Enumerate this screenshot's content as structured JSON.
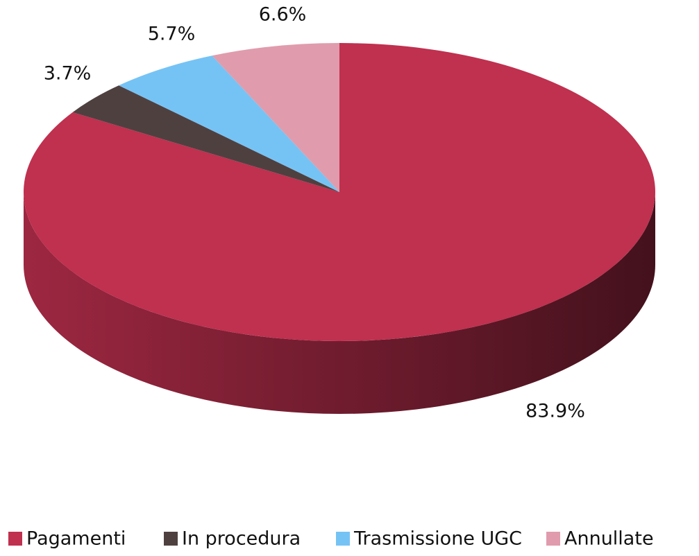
{
  "chart_data": {
    "type": "pie",
    "categories": [
      "Pagamenti",
      "In procedura",
      "Trasmissione UGC",
      "Annullate"
    ],
    "values": [
      83.9,
      3.7,
      5.7,
      6.6
    ],
    "value_labels": [
      "83.9%",
      "3.7%",
      "5.7%",
      "6.6%"
    ],
    "colors": [
      "#c0304f",
      "#4f4040",
      "#75c3f5",
      "#e09cac"
    ],
    "legend": "bottom"
  }
}
